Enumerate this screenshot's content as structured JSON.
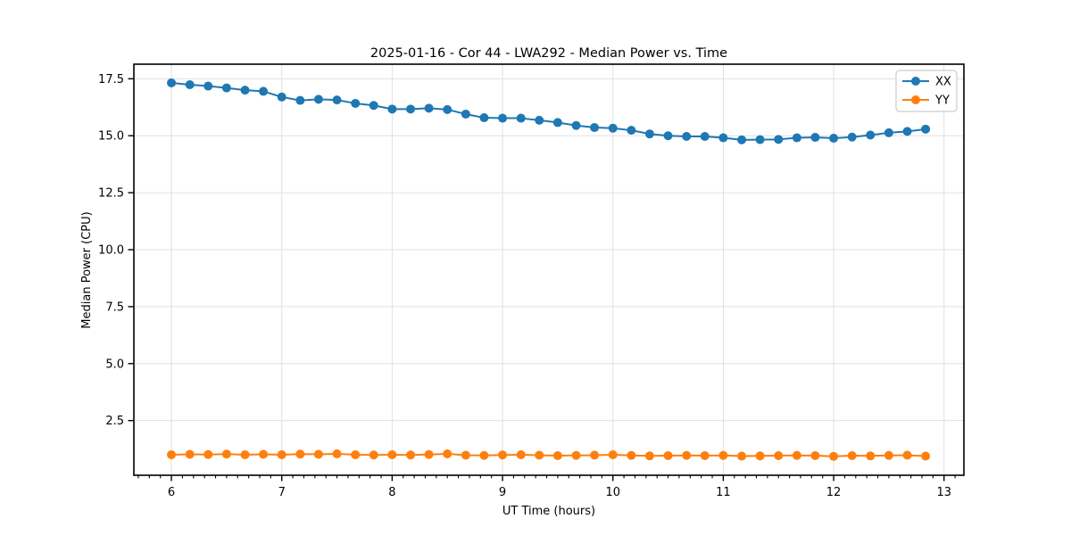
{
  "figure": {
    "background": "#ffffff"
  },
  "chart_data": {
    "type": "line",
    "title": "2025-01-16 - Cor 44 - LWA292 - Median Power vs. Time",
    "xlabel": "UT Time (hours)",
    "ylabel": "Median Power (CPU)",
    "xlim": [
      5.66,
      13.18
    ],
    "ylim": [
      0.1,
      18.14
    ],
    "x_major_ticks": [
      6,
      7,
      8,
      9,
      10,
      11,
      12,
      13
    ],
    "x_tick_labels": [
      "6",
      "7",
      "8",
      "9",
      "10",
      "11",
      "12",
      "13"
    ],
    "x_minor_tick_step": 0.1,
    "y_major_ticks": [
      2.5,
      5.0,
      7.5,
      10.0,
      12.5,
      15.0,
      17.5
    ],
    "y_tick_labels": [
      "2.5",
      "5.0",
      "7.5",
      "10.0",
      "12.5",
      "15.0",
      "17.5"
    ],
    "grid": true,
    "grid_color": "#e0e0e0",
    "spine_color": "#000000",
    "legend_position": "top-right",
    "x": [
      6.0,
      6.167,
      6.333,
      6.5,
      6.667,
      6.833,
      7.0,
      7.167,
      7.333,
      7.5,
      7.667,
      7.833,
      8.0,
      8.167,
      8.333,
      8.5,
      8.667,
      8.833,
      9.0,
      9.167,
      9.333,
      9.5,
      9.667,
      9.833,
      10.0,
      10.167,
      10.333,
      10.5,
      10.667,
      10.833,
      11.0,
      11.167,
      11.333,
      11.5,
      11.667,
      11.833,
      12.0,
      12.167,
      12.333,
      12.5,
      12.667,
      12.833
    ],
    "series": [
      {
        "name": "XX",
        "color": "#1f77b4",
        "values": [
          17.32,
          17.24,
          17.18,
          17.1,
          17.0,
          16.95,
          16.7,
          16.55,
          16.6,
          16.57,
          16.42,
          16.33,
          16.17,
          16.17,
          16.21,
          16.15,
          15.95,
          15.79,
          15.77,
          15.77,
          15.68,
          15.58,
          15.45,
          15.36,
          15.33,
          15.24,
          15.08,
          15.0,
          14.97,
          14.97,
          14.91,
          14.82,
          14.83,
          14.84,
          14.91,
          14.93,
          14.89,
          14.94,
          15.03,
          15.13,
          15.19,
          15.29
        ]
      },
      {
        "name": "YY",
        "color": "#ff7f0e",
        "values": [
          1.0,
          1.02,
          1.01,
          1.03,
          1.0,
          1.02,
          1.0,
          1.03,
          1.02,
          1.04,
          1.0,
          0.99,
          1.0,
          0.99,
          1.01,
          1.04,
          0.98,
          0.97,
          0.99,
          1.0,
          0.98,
          0.96,
          0.97,
          0.98,
          1.0,
          0.97,
          0.95,
          0.96,
          0.97,
          0.96,
          0.97,
          0.94,
          0.95,
          0.96,
          0.97,
          0.96,
          0.93,
          0.96,
          0.95,
          0.97,
          0.98,
          0.94
        ]
      }
    ]
  }
}
